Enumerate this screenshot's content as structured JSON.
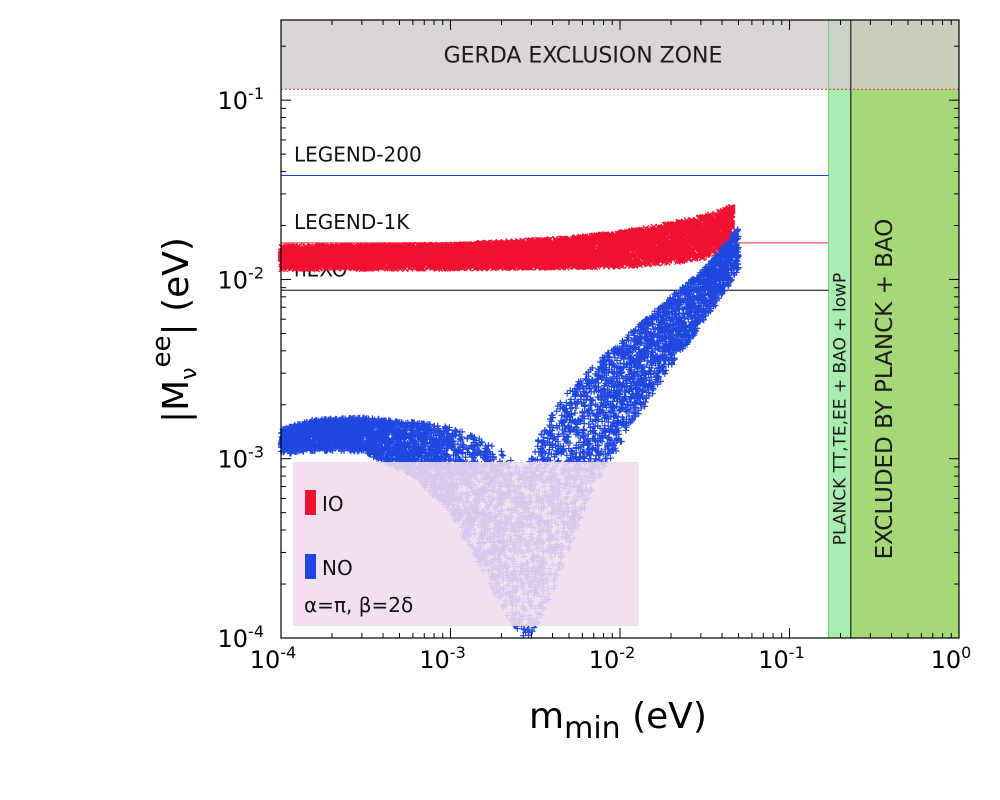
{
  "chart_data": {
    "type": "scatter",
    "xlabel": {
      "main": "m",
      "sub": "min",
      "unit": " (eV)"
    },
    "ylabel": {
      "pre": "|M",
      "sub": "ν",
      "sup": "ee",
      "post": "| (eV)"
    },
    "xscale": "log",
    "yscale": "log",
    "xlim": [
      0.0001,
      1
    ],
    "ylim": [
      0.0001,
      0.28
    ],
    "x_ticks": [
      {
        "base": "10",
        "exp": "-4",
        "value": 0.0001
      },
      {
        "base": "10",
        "exp": "-3",
        "value": 0.001
      },
      {
        "base": "10",
        "exp": "-2",
        "value": 0.01
      },
      {
        "base": "10",
        "exp": "-1",
        "value": 0.1
      },
      {
        "base": "10",
        "exp": "0",
        "value": 1
      }
    ],
    "y_ticks": [
      {
        "base": "10",
        "exp": "-4",
        "value": 0.0001
      },
      {
        "base": "10",
        "exp": "-3",
        "value": 0.001
      },
      {
        "base": "10",
        "exp": "-2",
        "value": 0.01
      },
      {
        "base": "10",
        "exp": "-1",
        "value": 0.1
      }
    ],
    "regions": {
      "gerda": {
        "label": "GERDA EXCLUSION ZONE",
        "y_from": 0.115,
        "color": "#d3cccc",
        "line_color": "#e8303a"
      },
      "planck_lowp": {
        "label": "PLANCK TT,TE,EE + BAO + lowP",
        "x_from": 0.17,
        "x_to": 0.23,
        "color": "#a8ecb0"
      },
      "planck_bao": {
        "label": "EXCLUDED BY PLANCK + BAO",
        "x_from": 0.23,
        "x_to": 1,
        "color": "#a6d878"
      }
    },
    "sensitivity_lines": [
      {
        "name": "LEGEND-200",
        "y": 0.038,
        "x_to": 0.17,
        "color": "#1d3fd8"
      },
      {
        "name": "LEGEND-1K",
        "y": 0.016,
        "x_to": 0.17,
        "color": "#e8303a"
      },
      {
        "name": "nEXO",
        "y": 0.0087,
        "x_to": 0.17,
        "color": "#000000"
      }
    ],
    "series": [
      {
        "name": "IO",
        "color": "#f01030",
        "marker": "x",
        "band": [
          {
            "m": 0.0001,
            "lo": 0.0114,
            "hi": 0.0153
          },
          {
            "m": 0.001,
            "lo": 0.0115,
            "hi": 0.0156
          },
          {
            "m": 0.005,
            "lo": 0.0117,
            "hi": 0.017
          },
          {
            "m": 0.01,
            "lo": 0.0118,
            "hi": 0.0182
          },
          {
            "m": 0.02,
            "lo": 0.0124,
            "hi": 0.0205
          },
          {
            "m": 0.03,
            "lo": 0.0131,
            "hi": 0.0222
          },
          {
            "m": 0.04,
            "lo": 0.0145,
            "hi": 0.024
          },
          {
            "m": 0.046,
            "lo": 0.0165,
            "hi": 0.0255
          }
        ]
      },
      {
        "name": "NO",
        "color": "#2046e0",
        "marker": "+",
        "band": [
          {
            "m": 0.0001,
            "lo": 0.00105,
            "hi": 0.00145
          },
          {
            "m": 0.00015,
            "lo": 0.0011,
            "hi": 0.00165
          },
          {
            "m": 0.0003,
            "lo": 0.0011,
            "hi": 0.0017
          },
          {
            "m": 0.0006,
            "lo": 0.0008,
            "hi": 0.0016
          },
          {
            "m": 0.001,
            "lo": 0.0005,
            "hi": 0.0015
          },
          {
            "m": 0.0015,
            "lo": 0.00025,
            "hi": 0.0013
          },
          {
            "m": 0.002,
            "lo": 0.00015,
            "hi": 0.0011
          },
          {
            "m": 0.0025,
            "lo": 0.0001,
            "hi": 0.0009
          },
          {
            "m": 0.003,
            "lo": 0.0001,
            "hi": 0.0011
          },
          {
            "m": 0.004,
            "lo": 0.00018,
            "hi": 0.0018
          },
          {
            "m": 0.005,
            "lo": 0.0003,
            "hi": 0.0024
          },
          {
            "m": 0.007,
            "lo": 0.0007,
            "hi": 0.0033
          },
          {
            "m": 0.01,
            "lo": 0.0012,
            "hi": 0.0045
          },
          {
            "m": 0.02,
            "lo": 0.0033,
            "hi": 0.008
          },
          {
            "m": 0.03,
            "lo": 0.0055,
            "hi": 0.011
          },
          {
            "m": 0.04,
            "lo": 0.008,
            "hi": 0.015
          },
          {
            "m": 0.05,
            "lo": 0.011,
            "hi": 0.02
          }
        ]
      }
    ],
    "legend": {
      "placement": "lower-left",
      "items": [
        {
          "label": "IO",
          "color": "#f01030"
        },
        {
          "label": "NO",
          "color": "#2046e0"
        }
      ],
      "note": "α=π, β=2δ",
      "box_color": "#f0dbee"
    }
  }
}
